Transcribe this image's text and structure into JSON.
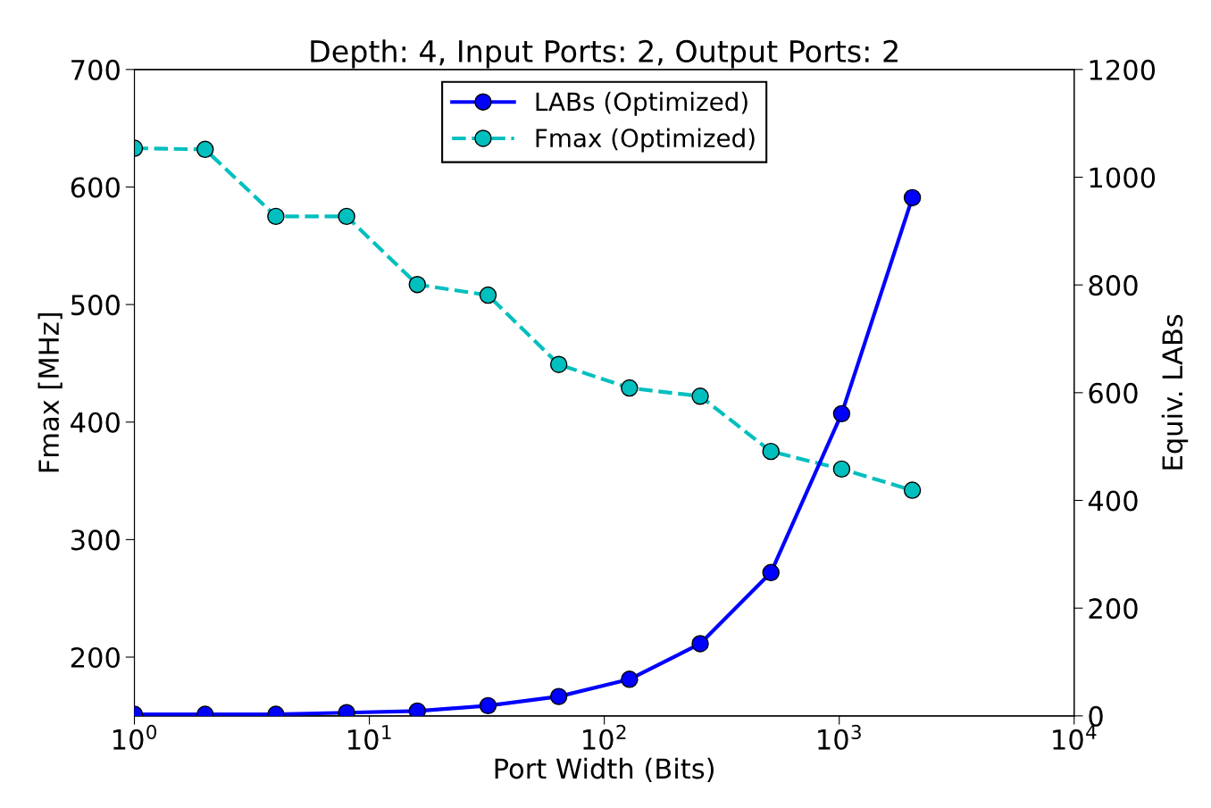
{
  "chart_data": {
    "type": "line",
    "title": "Depth: 4, Input Ports: 2, Output Ports: 2",
    "xlabel": "Port Width (Bits)",
    "ylabel": "Fmax [MHz]",
    "y2label": "Equiv. LABs",
    "x": [
      1,
      2,
      4,
      8,
      16,
      32,
      64,
      128,
      256,
      512,
      1024,
      2048
    ],
    "series": [
      {
        "name": "LABs (Optimized)",
        "color": "#0000ff",
        "axis": "y2",
        "line_style": "solid",
        "values": [
          3,
          3,
          3,
          6,
          9,
          19,
          36,
          68,
          134,
          266,
          561,
          962
        ]
      },
      {
        "name": "Fmax (Optimized)",
        "color": "#00bfbf",
        "line_style": "dashed",
        "values": [
          633,
          632,
          575,
          575,
          517,
          508,
          449,
          429,
          422,
          375,
          360,
          342
        ]
      }
    ],
    "log": "x",
    "xlim": [
      1,
      10000
    ],
    "xticks": [
      {
        "value": 1,
        "label": "10$^{0}$"
      },
      {
        "value": 10,
        "label": "10$^{1}$"
      },
      {
        "value": 100,
        "label": "10$^{2}$"
      },
      {
        "value": 1000,
        "label": "10$^{3}$"
      },
      {
        "value": 10000,
        "label": "10$^{4}$"
      }
    ],
    "ylim": [
      150,
      700
    ],
    "yticks": [
      200,
      300,
      400,
      500,
      600,
      700
    ],
    "y2lim": [
      0,
      1200
    ],
    "y2ticks": [
      0,
      200,
      400,
      600,
      800,
      1000,
      1200
    ],
    "marker": "circle",
    "grid": false,
    "legend": "top"
  }
}
